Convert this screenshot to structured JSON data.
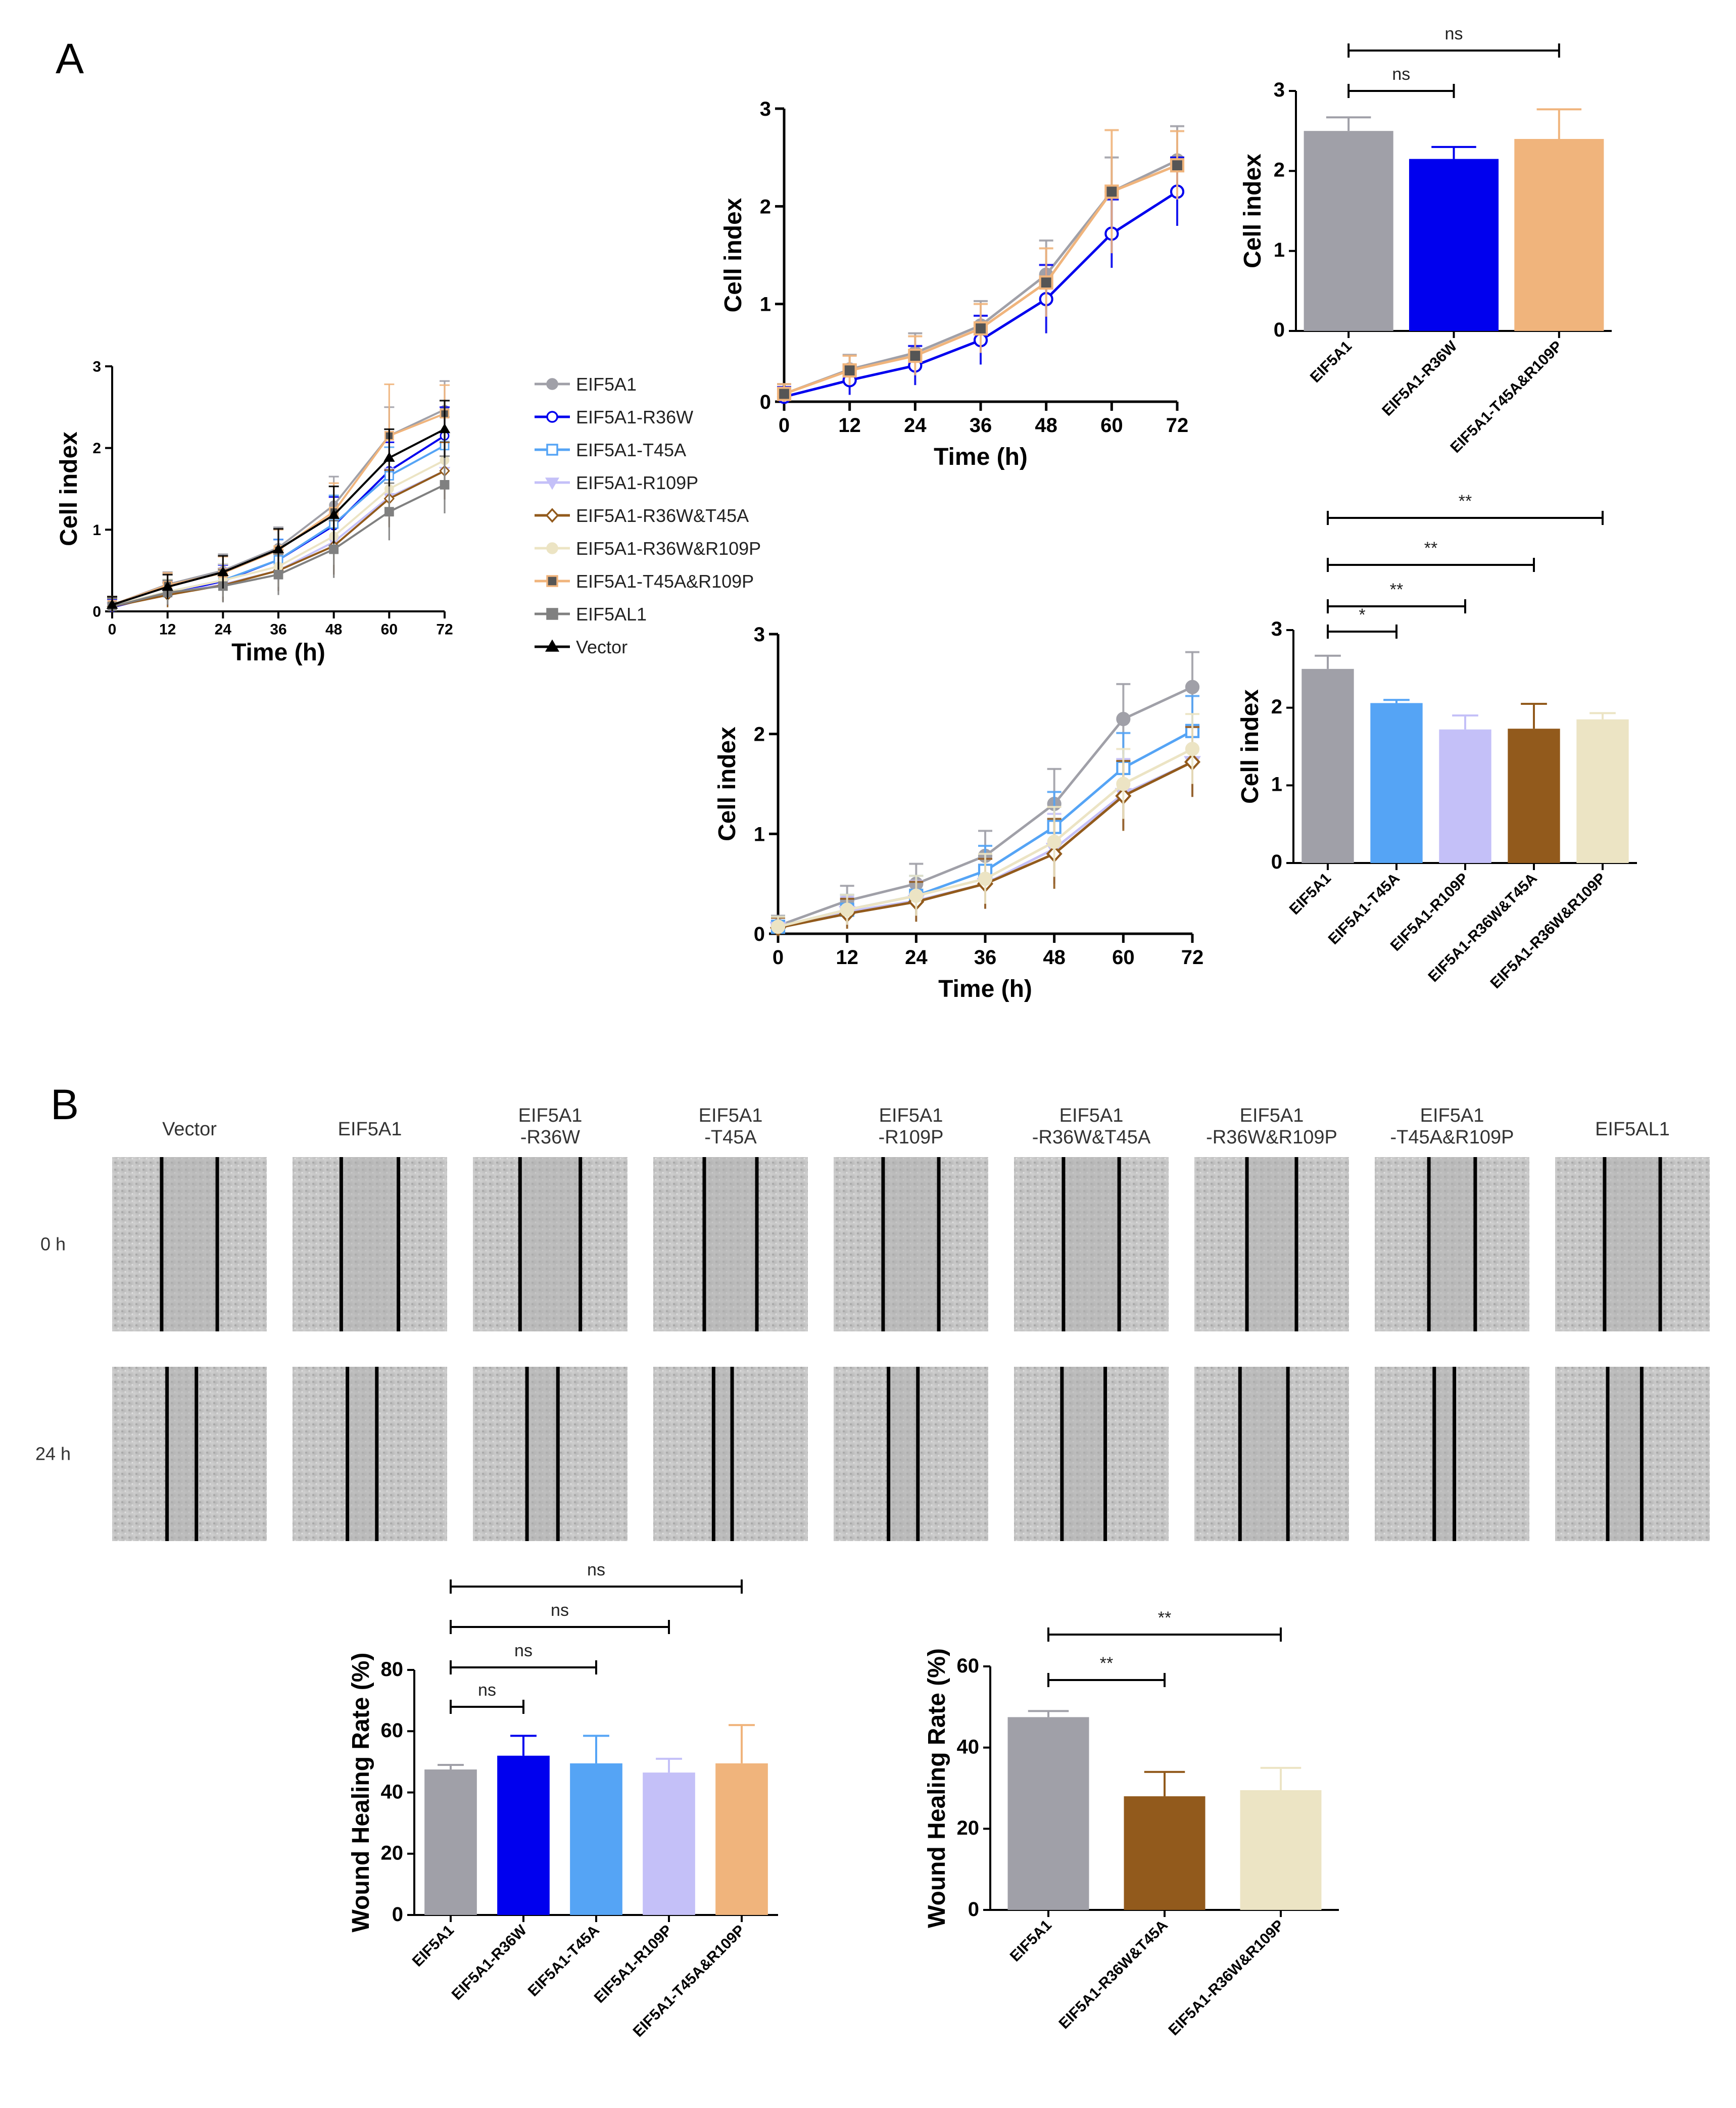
{
  "panel_labels": {
    "a": "A",
    "b": "B"
  },
  "colors": {
    "EIF5A1": "#a0a0a8",
    "EIF5A1-R36W": "#0000ee",
    "EIF5A1-T45A": "#55a4f5",
    "EIF5A1-R109P": "#c4c0f8",
    "EIF5A1-R36W&T45A": "#925a1c",
    "EIF5A1-R36W&R109P": "#ece4c4",
    "EIF5A1-T45A&R109P": "#f0b47c",
    "EIF5AL1": "#808080",
    "Vector": "#000000"
  },
  "legend": {
    "title_a": "",
    "items": [
      "EIF5A1",
      "EIF5A1-R36W",
      "EIF5A1-T45A",
      "EIF5A1-R109P",
      "EIF5A1-R36W&T45A",
      "EIF5A1-R36W&R109P",
      "EIF5A1-T45A&R109P",
      "EIF5AL1",
      "Vector"
    ]
  },
  "chart_data": [
    {
      "id": "a_all_lines",
      "type": "line",
      "xlabel": "Time (h)",
      "ylabel": "Cell index",
      "x": [
        0,
        12,
        24,
        36,
        48,
        60,
        72
      ],
      "xlim": [
        0,
        72
      ],
      "ylim": [
        0,
        3
      ],
      "yticks": [
        "0",
        "1",
        "2",
        "3"
      ],
      "xticks": [
        "0",
        "12",
        "24",
        "36",
        "48",
        "60",
        "72"
      ],
      "series": [
        {
          "name": "EIF5A1",
          "values": [
            0.08,
            0.33,
            0.5,
            0.78,
            1.3,
            2.15,
            2.47
          ]
        },
        {
          "name": "EIF5A1-R36W",
          "values": [
            0.05,
            0.22,
            0.37,
            0.63,
            1.05,
            1.72,
            2.15
          ]
        },
        {
          "name": "EIF5A1-T45A",
          "values": [
            0.07,
            0.24,
            0.38,
            0.63,
            1.07,
            1.66,
            2.03
          ]
        },
        {
          "name": "EIF5A1-R109P",
          "values": [
            0.06,
            0.22,
            0.33,
            0.5,
            0.85,
            1.4,
            1.72
          ]
        },
        {
          "name": "EIF5A1-R36W&T45A",
          "values": [
            0.06,
            0.2,
            0.32,
            0.5,
            0.8,
            1.38,
            1.72
          ]
        },
        {
          "name": "EIF5A1-R36W&R109P",
          "values": [
            0.07,
            0.24,
            0.38,
            0.55,
            0.92,
            1.5,
            1.85
          ]
        },
        {
          "name": "EIF5A1-T45A&R109P",
          "values": [
            0.08,
            0.32,
            0.47,
            0.75,
            1.22,
            2.15,
            2.42
          ]
        },
        {
          "name": "EIF5AL1",
          "values": [
            0.06,
            0.23,
            0.31,
            0.45,
            0.76,
            1.22,
            1.55
          ]
        },
        {
          "name": "Vector",
          "values": [
            0.08,
            0.3,
            0.48,
            0.76,
            1.18,
            1.88,
            2.23
          ]
        }
      ]
    },
    {
      "id": "a_lines_top",
      "type": "line",
      "xlabel": "Time (h)",
      "ylabel": "Cell index",
      "x": [
        0,
        12,
        24,
        36,
        48,
        60,
        72
      ],
      "xlim": [
        0,
        72
      ],
      "ylim": [
        0,
        3
      ],
      "yticks": [
        "0",
        "1",
        "2",
        "3"
      ],
      "xticks": [
        "0",
        "12",
        "24",
        "36",
        "48",
        "60",
        "72"
      ],
      "series": [
        {
          "name": "EIF5A1",
          "values": [
            0.08,
            0.33,
            0.5,
            0.78,
            1.3,
            2.15,
            2.47
          ]
        },
        {
          "name": "EIF5A1-R36W",
          "values": [
            0.05,
            0.22,
            0.37,
            0.63,
            1.05,
            1.72,
            2.15
          ]
        },
        {
          "name": "EIF5A1-T45A&R109P",
          "values": [
            0.08,
            0.32,
            0.47,
            0.75,
            1.22,
            2.15,
            2.42
          ]
        }
      ]
    },
    {
      "id": "a_bar_top",
      "type": "bar",
      "ylabel": "Cell index",
      "ylim": [
        0,
        3
      ],
      "yticks": [
        "0",
        "1",
        "2",
        "3"
      ],
      "categories": [
        "EIF5A1",
        "EIF5A1-R36W",
        "EIF5A1-T45A&R109P"
      ],
      "values": [
        2.5,
        2.15,
        2.4
      ],
      "errors": [
        0.17,
        0.15,
        0.37
      ],
      "significance": [
        {
          "from": 0,
          "to": 1,
          "label": "ns"
        },
        {
          "from": 0,
          "to": 2,
          "label": "ns"
        }
      ]
    },
    {
      "id": "a_lines_bottom",
      "type": "line",
      "xlabel": "Time (h)",
      "ylabel": "Cell index",
      "x": [
        0,
        12,
        24,
        36,
        48,
        60,
        72
      ],
      "xlim": [
        0,
        72
      ],
      "ylim": [
        0,
        3
      ],
      "yticks": [
        "0",
        "1",
        "2",
        "3"
      ],
      "xticks": [
        "0",
        "12",
        "24",
        "36",
        "48",
        "60",
        "72"
      ],
      "series": [
        {
          "name": "EIF5A1",
          "values": [
            0.08,
            0.33,
            0.5,
            0.78,
            1.3,
            2.15,
            2.47
          ]
        },
        {
          "name": "EIF5A1-T45A",
          "values": [
            0.07,
            0.24,
            0.38,
            0.63,
            1.07,
            1.66,
            2.03
          ]
        },
        {
          "name": "EIF5A1-R109P",
          "values": [
            0.06,
            0.22,
            0.33,
            0.5,
            0.85,
            1.4,
            1.72
          ]
        },
        {
          "name": "EIF5A1-R36W&T45A",
          "values": [
            0.06,
            0.2,
            0.32,
            0.5,
            0.8,
            1.38,
            1.72
          ]
        },
        {
          "name": "EIF5A1-R36W&R109P",
          "values": [
            0.07,
            0.24,
            0.38,
            0.55,
            0.92,
            1.5,
            1.85
          ]
        }
      ]
    },
    {
      "id": "a_bar_bottom",
      "type": "bar",
      "ylabel": "Cell index",
      "ylim": [
        0,
        3
      ],
      "yticks": [
        "0",
        "1",
        "2",
        "3"
      ],
      "categories": [
        "EIF5A1",
        "EIF5A1-T45A",
        "EIF5A1-R109P",
        "EIF5A1-R36W&T45A",
        "EIF5A1-R36W&R109P"
      ],
      "values": [
        2.5,
        2.06,
        1.72,
        1.73,
        1.85
      ],
      "errors": [
        0.17,
        0.04,
        0.18,
        0.32,
        0.08
      ],
      "significance": [
        {
          "from": 0,
          "to": 1,
          "label": "*"
        },
        {
          "from": 0,
          "to": 2,
          "label": "**"
        },
        {
          "from": 0,
          "to": 3,
          "label": "**"
        },
        {
          "from": 0,
          "to": 4,
          "label": "**"
        }
      ]
    },
    {
      "id": "b_bar_left",
      "type": "bar",
      "ylabel": "Wound Healing Rate (%)",
      "ylim": [
        0,
        80
      ],
      "yticks": [
        "0",
        "20",
        "40",
        "60",
        "80"
      ],
      "categories": [
        "EIF5A1",
        "EIF5A1-R36W",
        "EIF5A1-T45A",
        "EIF5A1-R109P",
        "EIF5A1-T45A&R109P"
      ],
      "values": [
        47.5,
        52,
        49.5,
        46.5,
        49.5
      ],
      "errors": [
        1.5,
        6.5,
        9,
        4.5,
        12.5
      ],
      "significance": [
        {
          "from": 0,
          "to": 1,
          "label": "ns"
        },
        {
          "from": 0,
          "to": 2,
          "label": "ns"
        },
        {
          "from": 0,
          "to": 3,
          "label": "ns"
        },
        {
          "from": 0,
          "to": 4,
          "label": "ns"
        }
      ]
    },
    {
      "id": "b_bar_right",
      "type": "bar",
      "ylabel": "Wound Healing Rate (%)",
      "ylim": [
        0,
        60
      ],
      "yticks": [
        "0",
        "20",
        "40",
        "60"
      ],
      "categories": [
        "EIF5A1",
        "EIF5A1-R36W&T45A",
        "EIF5A1-R36W&R109P"
      ],
      "values": [
        47.5,
        28,
        29.5
      ],
      "errors": [
        1.5,
        6,
        5.5
      ],
      "significance": [
        {
          "from": 0,
          "to": 1,
          "label": "**"
        },
        {
          "from": 0,
          "to": 2,
          "label": "**"
        }
      ]
    }
  ],
  "wound_panel": {
    "columns": [
      {
        "line1": "Vector",
        "line2": ""
      },
      {
        "line1": "EIF5A1",
        "line2": ""
      },
      {
        "line1": "EIF5A1",
        "line2": "-R36W"
      },
      {
        "line1": "EIF5A1",
        "line2": "-T45A"
      },
      {
        "line1": "EIF5A1",
        "line2": "-R109P"
      },
      {
        "line1": "EIF5A1",
        "line2": "-R36W&T45A"
      },
      {
        "line1": "EIF5A1",
        "line2": "-R36W&R109P"
      },
      {
        "line1": "EIF5A1",
        "line2": "-T45A&R109P"
      },
      {
        "line1": "EIF5AL1",
        "line2": ""
      }
    ],
    "rows": [
      "0 h",
      "24 h"
    ],
    "gap_fraction": [
      [
        0.36,
        0.37,
        0.39,
        0.34,
        0.36,
        0.36,
        0.32,
        0.3,
        0.36
      ],
      [
        0.19,
        0.19,
        0.2,
        0.12,
        0.19,
        0.28,
        0.31,
        0.13,
        0.22
      ]
    ]
  }
}
